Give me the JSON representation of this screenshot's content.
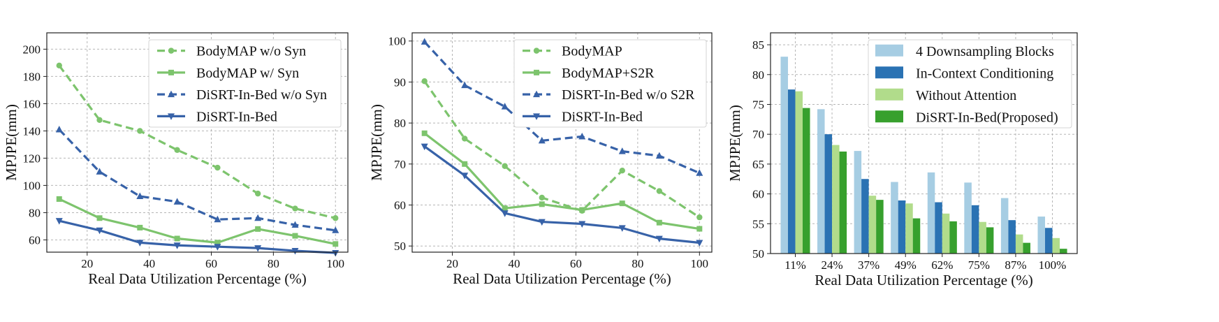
{
  "chart_data": [
    {
      "type": "line",
      "xlabel": "Real Data Utilization Percentage (%)",
      "ylabel": "MPJPE(mm)",
      "xlim": [
        7,
        104
      ],
      "ylim": [
        51,
        212
      ],
      "x_ticks": [
        20,
        40,
        60,
        80,
        100
      ],
      "y_ticks": [
        60,
        80,
        100,
        120,
        140,
        160,
        180,
        200
      ],
      "grid": true,
      "legend": "top-right",
      "x": [
        11,
        24,
        37,
        49,
        62,
        75,
        87,
        100
      ],
      "series": [
        {
          "name": "BodyMAP w/o Syn",
          "color": "#7dc46d",
          "dash": true,
          "marker": "circle",
          "values": [
            188,
            148,
            140,
            126,
            113,
            94,
            83,
            76
          ]
        },
        {
          "name": "BodyMAP w/ Syn",
          "color": "#7dc46d",
          "dash": false,
          "marker": "square",
          "values": [
            90,
            76,
            69,
            61,
            58,
            68,
            63,
            57
          ]
        },
        {
          "name": "DiSRT-In-Bed w/o Syn",
          "color": "#3762a8",
          "dash": true,
          "marker": "triangle-up",
          "values": [
            141,
            110,
            92,
            88,
            75,
            76,
            71,
            67
          ]
        },
        {
          "name": "DiSRT-In-Bed",
          "color": "#3762a8",
          "dash": false,
          "marker": "triangle-down",
          "values": [
            74,
            67,
            58,
            56,
            55,
            54,
            52,
            50.5
          ]
        }
      ]
    },
    {
      "type": "line",
      "xlabel": "Real Data Utilization Percentage (%)",
      "ylabel": "MPJPE(mm)",
      "xlim": [
        7,
        104
      ],
      "ylim": [
        48.5,
        102
      ],
      "x_ticks": [
        20,
        40,
        60,
        80,
        100
      ],
      "y_ticks": [
        50,
        60,
        70,
        80,
        90,
        100
      ],
      "grid": true,
      "legend": "top-right",
      "x": [
        11,
        24,
        37,
        49,
        62,
        75,
        87,
        100
      ],
      "series": [
        {
          "name": "BodyMAP",
          "color": "#7dc46d",
          "dash": true,
          "marker": "circle",
          "values": [
            90.2,
            76.2,
            69.5,
            61.8,
            58.6,
            68.4,
            63.4,
            57
          ]
        },
        {
          "name": "BodyMAP+S2R",
          "color": "#7dc46d",
          "dash": false,
          "marker": "square",
          "values": [
            77.5,
            70,
            59.2,
            60.2,
            58.8,
            60.4,
            55.7,
            54.2
          ]
        },
        {
          "name": "DiSRT-In-Bed w/o S2R",
          "color": "#3762a8",
          "dash": true,
          "marker": "triangle-up",
          "values": [
            99.8,
            89.2,
            84,
            75.7,
            76.7,
            73.1,
            72,
            67.8
          ]
        },
        {
          "name": "DiSRT-In-Bed",
          "color": "#3762a8",
          "dash": false,
          "marker": "triangle-down",
          "values": [
            74.3,
            67.2,
            58,
            55.9,
            55.4,
            54.4,
            51.8,
            50.8
          ]
        }
      ]
    },
    {
      "type": "bar",
      "xlabel": "Real Data Utilization Percentage (%)",
      "ylabel": "MPJPE(mm)",
      "ylim": [
        50,
        87
      ],
      "y_ticks": [
        50,
        55,
        60,
        65,
        70,
        75,
        80,
        85
      ],
      "grid": true,
      "legend": "top-right",
      "categories": [
        "11%",
        "24%",
        "37%",
        "49%",
        "62%",
        "75%",
        "87%",
        "100%"
      ],
      "series": [
        {
          "name": "4 Downsampling Blocks",
          "color": "#a6cde3",
          "values": [
            83,
            74.2,
            67.2,
            62,
            63.6,
            61.9,
            59.3,
            56.2
          ]
        },
        {
          "name": "In-Context Conditioning",
          "color": "#2a72b3",
          "values": [
            77.5,
            70,
            62.5,
            58.9,
            58.6,
            58.1,
            55.6,
            54.3
          ]
        },
        {
          "name": "Without Attention",
          "color": "#b1dc8b",
          "values": [
            77.2,
            68.2,
            59.7,
            58.4,
            56.7,
            55.3,
            53.2,
            52.6
          ]
        },
        {
          "name": "DiSRT-In-Bed(Proposed)",
          "color": "#37a02d",
          "values": [
            74.4,
            67.1,
            59,
            55.9,
            55.4,
            54.4,
            51.8,
            50.8
          ]
        }
      ]
    }
  ]
}
